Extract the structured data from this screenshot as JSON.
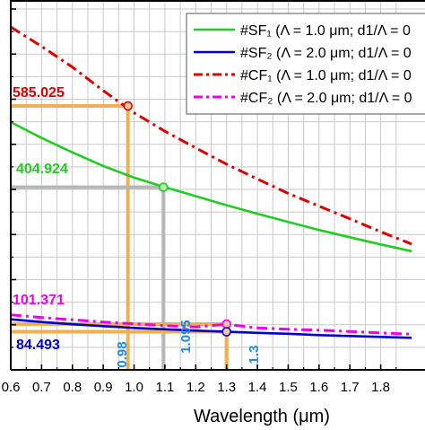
{
  "chart_data": {
    "type": "line",
    "xlabel": "Wavelength (μm)",
    "xlim": [
      0.6,
      1.9
    ],
    "ylim": [
      0,
      800
    ],
    "x_ticks": [
      0.6,
      0.7,
      0.8,
      0.9,
      1.0,
      1.1,
      1.2,
      1.3,
      1.4,
      1.5,
      1.6,
      1.7,
      1.8
    ],
    "x_tick_labels": [
      "0.6",
      "0.7",
      "0.8",
      "0.9",
      "1.0",
      "1.1",
      "1.2",
      "1.3",
      "1.4",
      "1.5",
      "1.6",
      "1.7",
      "1.8"
    ],
    "y_ticks": [
      0,
      100,
      200,
      300,
      400,
      500,
      600,
      700,
      800
    ],
    "grid": true,
    "legend_position": "top-right",
    "series": [
      {
        "name": "#SF₁ (Λ = 1.0 μm; d1/Λ = 0",
        "color": "#22cc22",
        "dash": "solid",
        "x": [
          0.6,
          0.7,
          0.8,
          0.9,
          1.0,
          1.1,
          1.2,
          1.3,
          1.4,
          1.5,
          1.6,
          1.7,
          1.8,
          1.9
        ],
        "y": [
          549,
          514,
          482,
          452,
          426,
          405,
          385,
          365,
          346,
          328,
          310,
          294,
          278,
          263
        ]
      },
      {
        "name": "#SF₂ (Λ = 2.0 μm; d1/Λ = 0",
        "color": "#0000cc",
        "dash": "solid",
        "x": [
          0.6,
          0.7,
          0.8,
          0.9,
          1.0,
          1.1,
          1.2,
          1.3,
          1.4,
          1.5,
          1.6,
          1.7,
          1.8,
          1.9
        ],
        "y": [
          112,
          106,
          101,
          97,
          93,
          90,
          87,
          84.5,
          82,
          80,
          77,
          75,
          73,
          71
        ]
      },
      {
        "name": "#CF₁ (Λ = 1.0 μm; d1/Λ = 0",
        "color": "#dd0000",
        "dash": "dashdot",
        "x": [
          0.6,
          0.7,
          0.8,
          0.9,
          1.0,
          1.1,
          1.2,
          1.3,
          1.4,
          1.5,
          1.6,
          1.7,
          1.8,
          1.9
        ],
        "y": [
          760,
          717,
          671,
          619,
          570,
          529,
          492,
          456,
          423,
          391,
          363,
          335,
          306,
          279
        ]
      },
      {
        "name": "#CF₂ (Λ = 2.0 μm; d1/Λ = 0",
        "color": "#ee00ee",
        "dash": "dashdot",
        "x": [
          0.6,
          0.7,
          0.8,
          0.9,
          1.0,
          1.1,
          1.2,
          1.3,
          1.4,
          1.5,
          1.6,
          1.7,
          1.8,
          1.9
        ],
        "y": [
          122,
          116,
          111,
          106,
          102,
          98,
          95,
          101,
          93,
          90,
          88,
          85,
          82,
          79
        ]
      }
    ],
    "annotations": [
      {
        "value": "585.025",
        "color": "#dd0000",
        "x": 0.98,
        "y": 585.025,
        "line_color": "#f0b050",
        "x_label": "0.98",
        "x_label_color": "#1e88e5"
      },
      {
        "value": "404.924",
        "color": "#22cc22",
        "x": 1.095,
        "y": 404.924,
        "line_color": "#b8b8b8",
        "x_label": "1.095",
        "x_label_color": "#1e88e5"
      },
      {
        "value": "101.371",
        "color": "#ee00ee",
        "x": 1.3,
        "y": 101.371,
        "line_color": "#f0b050",
        "x_label": "1.3",
        "x_label_color": "#1e88e5"
      },
      {
        "value": "84.493",
        "color": "#0000cc",
        "x": 1.3,
        "y": 84.493,
        "line_color": "#f0b050",
        "x_label": "",
        "x_label_color": "#1e88e5"
      }
    ]
  }
}
